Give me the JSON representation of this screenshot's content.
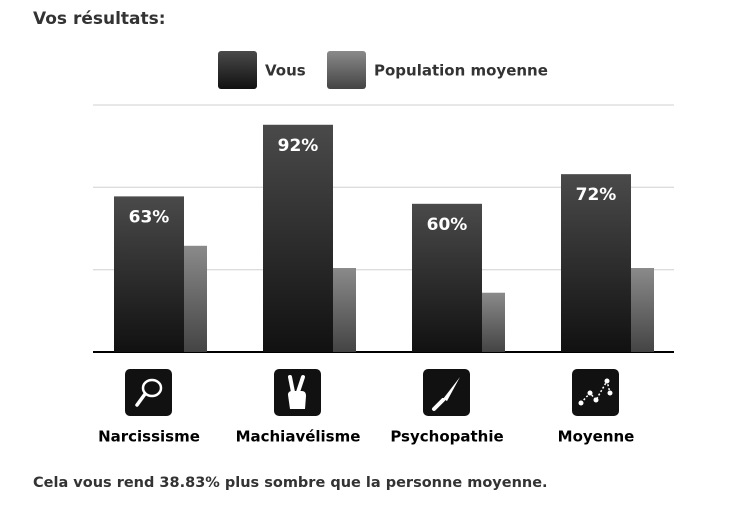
{
  "chart_data": {
    "type": "bar",
    "title": "Vos résultats:",
    "categories": [
      "Narcissisme",
      "Machiavélisme",
      "Psychopathie",
      "Moyenne"
    ],
    "series": [
      {
        "name": "Vous",
        "color": "#111111",
        "values": [
          63,
          92,
          60,
          72
        ],
        "value_labels": [
          "63%",
          "92%",
          "60%",
          "72%"
        ]
      },
      {
        "name": "Population moyenne",
        "color": "#444444",
        "values": [
          43,
          34,
          24,
          34
        ]
      }
    ],
    "ylim": [
      0,
      100
    ],
    "yticks": [
      0,
      33.3,
      66.7,
      100
    ],
    "grid": true
  },
  "footer": "Cela vous rend 38.83% plus sombre que la personne moyenne."
}
